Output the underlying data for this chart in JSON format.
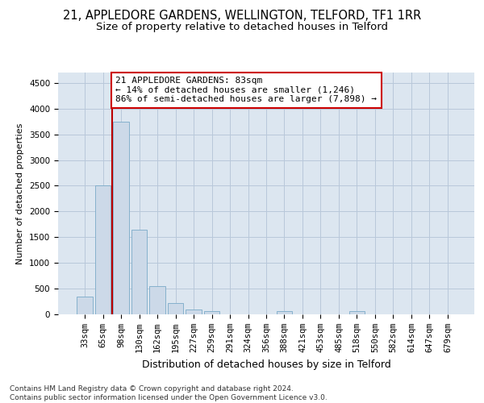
{
  "title": "21, APPLEDORE GARDENS, WELLINGTON, TELFORD, TF1 1RR",
  "subtitle": "Size of property relative to detached houses in Telford",
  "xlabel": "Distribution of detached houses by size in Telford",
  "ylabel": "Number of detached properties",
  "categories": [
    "33sqm",
    "65sqm",
    "98sqm",
    "130sqm",
    "162sqm",
    "195sqm",
    "227sqm",
    "259sqm",
    "291sqm",
    "324sqm",
    "356sqm",
    "388sqm",
    "421sqm",
    "453sqm",
    "485sqm",
    "518sqm",
    "550sqm",
    "582sqm",
    "614sqm",
    "647sqm",
    "679sqm"
  ],
  "values": [
    350,
    2500,
    3750,
    1650,
    550,
    220,
    100,
    60,
    0,
    0,
    0,
    60,
    0,
    0,
    0,
    55,
    0,
    0,
    0,
    0,
    0
  ],
  "bar_color": "#ccd9e8",
  "bar_edge_color": "#7aaac8",
  "grid_color": "#b8c8da",
  "background_color": "#dce6f0",
  "vline_x": 1.5,
  "vline_color": "#bb0000",
  "annotation_text": "21 APPLEDORE GARDENS: 83sqm\n← 14% of detached houses are smaller (1,246)\n86% of semi-detached houses are larger (7,898) →",
  "annotation_box_color": "#ffffff",
  "annotation_box_edge": "#cc0000",
  "ylim": [
    0,
    4700
  ],
  "yticks": [
    0,
    500,
    1000,
    1500,
    2000,
    2500,
    3000,
    3500,
    4000,
    4500
  ],
  "footer": "Contains HM Land Registry data © Crown copyright and database right 2024.\nContains public sector information licensed under the Open Government Licence v3.0.",
  "title_fontsize": 10.5,
  "subtitle_fontsize": 9.5,
  "xlabel_fontsize": 9,
  "ylabel_fontsize": 8,
  "tick_fontsize": 7.5,
  "annotation_fontsize": 8,
  "footer_fontsize": 6.5
}
